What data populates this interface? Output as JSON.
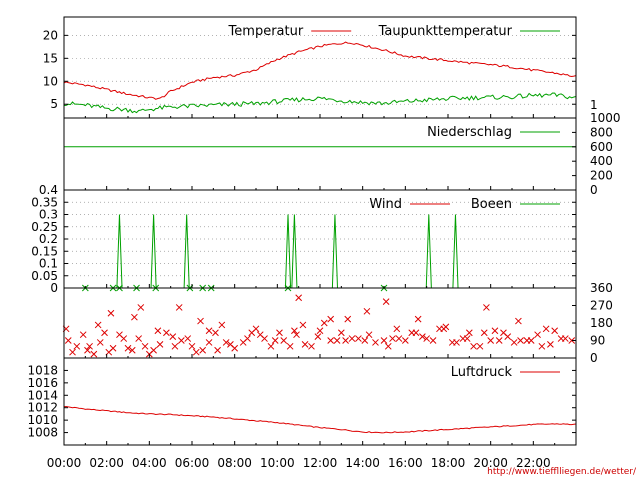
{
  "colors": {
    "red": "#dd0000",
    "green": "#00a000",
    "grid": "#999999",
    "footer": "#cc0000"
  },
  "footer_url": "http://www.tiefflliegen.de/wetter/",
  "x_ticks": [
    "00:00",
    "02:00",
    "04:00",
    "06:00",
    "08:00",
    "10:00",
    "12:00",
    "14:00",
    "16:00",
    "18:00",
    "20:00",
    "22:00"
  ],
  "chart_data": [
    {
      "type": "line",
      "panel": "temperature",
      "x_unit": "hour",
      "xlim": [
        0,
        24
      ],
      "ylim": [
        2,
        24
      ],
      "y_ticks": [
        5,
        10,
        15,
        20
      ],
      "right_ticks": [
        "1"
      ],
      "grid": true,
      "legend_position": "top-right",
      "series": [
        {
          "name": "Temperatur",
          "color": "#dd0000",
          "x": [
            0,
            1,
            2,
            3,
            4,
            4.5,
            5,
            6,
            7,
            8,
            9,
            10,
            11,
            12,
            12.5,
            13,
            13.5,
            14,
            15,
            16,
            17,
            18,
            19,
            20,
            21,
            22,
            23,
            24
          ],
          "y": [
            9.8,
            9.2,
            8.2,
            7.2,
            6.4,
            6.2,
            7.8,
            9.8,
            10.8,
            11.3,
            12.5,
            14.8,
            16.4,
            17.6,
            18,
            18.3,
            18.4,
            17.9,
            16.8,
            15.5,
            15,
            14.5,
            14,
            13.6,
            13.1,
            12.4,
            11.8,
            11
          ]
        },
        {
          "name": "Taupunkttemperatur",
          "color": "#00a000",
          "x": [
            0,
            1,
            2,
            3,
            3.5,
            4,
            5,
            6,
            7,
            8,
            9,
            10,
            11,
            12,
            13,
            14,
            15,
            16,
            17,
            18,
            19,
            20,
            21,
            22,
            23,
            24
          ],
          "y": [
            5.2,
            4.8,
            4.1,
            3.8,
            3.4,
            3.9,
            4.4,
            4.6,
            4.8,
            5,
            5.1,
            5.6,
            6,
            6.3,
            5.8,
            5.4,
            5.2,
            5.6,
            5.9,
            6.2,
            6.4,
            6.5,
            6.6,
            6.9,
            7,
            6.4
          ]
        }
      ]
    },
    {
      "type": "line",
      "panel": "precipitation",
      "xlim": [
        0,
        24
      ],
      "ylim": [
        0,
        1000
      ],
      "right_ticks": [
        "0",
        "200",
        "400",
        "600",
        "800",
        "1000"
      ],
      "legend_position": "top-right",
      "series": [
        {
          "name": "Niederschlag",
          "color": "#00a000",
          "x": [
            0,
            24
          ],
          "y": [
            600,
            600
          ]
        }
      ]
    },
    {
      "type": "line",
      "panel": "wind",
      "xlim": [
        0,
        24
      ],
      "ylim": [
        0,
        0.4
      ],
      "y_ticks": [
        "0",
        "0.05",
        "0.1",
        "0.15",
        "0.2",
        "0.25",
        "0.3",
        "0.35",
        "0.4"
      ],
      "grid": true,
      "legend_position": "top-right",
      "series": [
        {
          "name": "Wind",
          "color": "#dd0000",
          "x": [
            0,
            24
          ],
          "y": [
            0,
            0
          ]
        },
        {
          "name": "Boeen",
          "color": "#00a000",
          "peaks": [
            2.6,
            4.2,
            5.75,
            10.5,
            10.8,
            12.7,
            17.1,
            18.35
          ],
          "peak_value": 0.3
        }
      ]
    },
    {
      "type": "scatter",
      "panel": "wind-direction",
      "xlim": [
        0,
        24
      ],
      "ylim": [
        0,
        360
      ],
      "right_ticks": [
        "0",
        "90",
        "180",
        "270",
        "360"
      ],
      "series": [
        {
          "name": "",
          "color": "#dd0000",
          "x": [
            0.2,
            0.6,
            1.1,
            1.7,
            2.1,
            2.6,
            3.0,
            3.5,
            4.0,
            4.5,
            5.1,
            5.5,
            6.0,
            6.5,
            7.1,
            7.6,
            8.0,
            8.6,
            9.2,
            9.7,
            10.3,
            10.8,
            11.3,
            11.9,
            12.5,
            13.0,
            13.5,
            14.1,
            14.6,
            15.2,
            15.7,
            16.3,
            16.8,
            17.3,
            17.8,
            18.4,
            18.9,
            19.5,
            20.0,
            20.6,
            21.1,
            21.7,
            22.2,
            22.8,
            23.3,
            23.8,
            0.4,
            1.4,
            2.3,
            3.2,
            4.2,
            5.2,
            6.2,
            7.2,
            8.4,
            9.4,
            10.6,
            11.6,
            12.8,
            13.8,
            15.0,
            16.0,
            17.0,
            18.2,
            19.2,
            20.4,
            21.4,
            22.4,
            23.5,
            0.9,
            1.9,
            2.8,
            3.8,
            4.8,
            5.8,
            6.8,
            7.8,
            8.8,
            9.9,
            10.9,
            12.0,
            13.2,
            14.3,
            15.4,
            16.5,
            17.6,
            18.7,
            19.7,
            20.8,
            21.9,
            23.0,
            1.6,
            4.4,
            6.4,
            9.0,
            11.2,
            13.3,
            15.6,
            17.9,
            20.2,
            22.6,
            2.2,
            3.6,
            5.4,
            7.4,
            10.1,
            12.2,
            14.2,
            16.6,
            19.0,
            21.3,
            0.1,
            1.2,
            3.3,
            6.8,
            11.0,
            12.5,
            15.1,
            19.8
          ],
          "y": [
            90,
            60,
            40,
            80,
            30,
            120,
            50,
            100,
            20,
            70,
            110,
            90,
            60,
            40,
            130,
            80,
            50,
            100,
            120,
            60,
            90,
            140,
            70,
            110,
            90,
            130,
            100,
            90,
            80,
            60,
            100,
            130,
            110,
            90,
            150,
            80,
            100,
            60,
            90,
            130,
            80,
            90,
            120,
            70,
            100,
            90,
            30,
            20,
            50,
            40,
            40,
            60,
            30,
            40,
            80,
            100,
            60,
            60,
            90,
            100,
            90,
            90,
            100,
            80,
            60,
            90,
            90,
            60,
            100,
            120,
            130,
            100,
            60,
            130,
            100,
            80,
            70,
            130,
            90,
            120,
            140,
            90,
            120,
            100,
            130,
            150,
            100,
            130,
            110,
            90,
            140,
            170,
            140,
            190,
            150,
            170,
            200,
            150,
            160,
            140,
            150,
            230,
            260,
            260,
            170,
            130,
            180,
            240,
            200,
            130,
            190,
            150,
            60,
            210,
            140,
            310,
            200,
            290,
            260
          ]
        }
      ]
    },
    {
      "type": "line",
      "panel": "pressure",
      "xlim": [
        0,
        24
      ],
      "ylim": [
        1006,
        1020
      ],
      "y_ticks": [
        1008,
        1010,
        1012,
        1014,
        1016,
        1018
      ],
      "legend_position": "top-right",
      "series": [
        {
          "name": "Luftdruck",
          "color": "#dd0000",
          "x": [
            0,
            1,
            2,
            3,
            4,
            5,
            6,
            7,
            8,
            9,
            10,
            11,
            12,
            13,
            14,
            15,
            16,
            17,
            18,
            19,
            20,
            21,
            22,
            23,
            24
          ],
          "y": [
            1012.2,
            1011.8,
            1011.5,
            1011.2,
            1011,
            1010.9,
            1010.7,
            1010.5,
            1010.2,
            1009.9,
            1009.6,
            1009.2,
            1008.8,
            1008.5,
            1008.1,
            1008,
            1008.1,
            1008.3,
            1008.5,
            1008.7,
            1008.9,
            1009.1,
            1009.3,
            1009.4,
            1009.3
          ]
        }
      ]
    }
  ]
}
